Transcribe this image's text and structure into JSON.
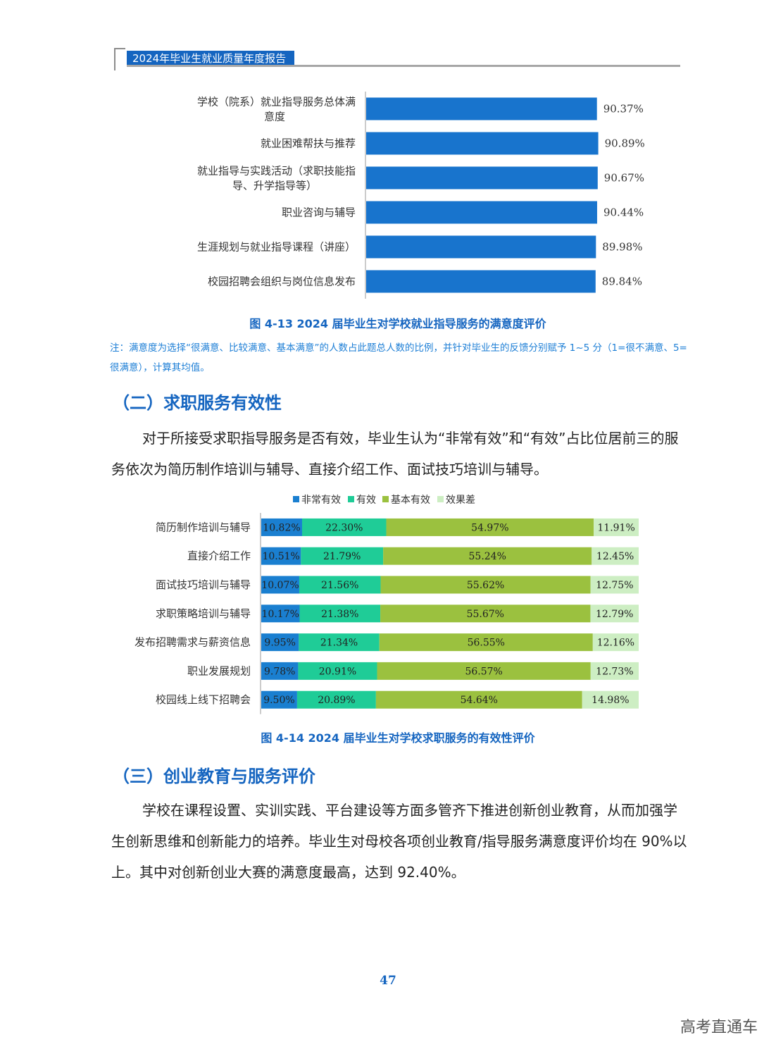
{
  "header": {
    "title": "2024年毕业生就业质量年度报告"
  },
  "colors": {
    "accent": "#1565c0",
    "bar": "#1874cd",
    "s1": "#1a7fd0",
    "s2": "#1fcc97",
    "s3": "#9bc13f",
    "s4": "#cdeec3"
  },
  "figure_13": {
    "caption": "图 4-13  2024 届毕业生对学校就业指导服务的满意度评价",
    "note": "注：满意度为选择“很满意、比较满意、基本满意”的人数占此题总人数的比例，并针对毕业生的反馈分别赋予 1~5 分（1=很不满意、5=很满意），计算其均值。"
  },
  "section_2": {
    "title": "（二）求职服务有效性",
    "paragraph": "对于所接受求职指导服务是否有效，毕业生认为“非常有效”和“有效”占比位居前三的服务依次为简历制作培训与辅导、直接介绍工作、面试技巧培训与辅导。"
  },
  "figure_14": {
    "caption": "图 4-14  2024 届毕业生对学校求职服务的有效性评价"
  },
  "section_3": {
    "title": "（三）创业教育与服务评价",
    "paragraph": "学校在课程设置、实训实践、平台建设等方面多管齐下推进创新创业教育，从而加强学生创新思维和创新能力的培养。毕业生对母校各项创业教育/指导服务满意度评价均在 90%以上。其中对创新创业大赛的满意度最高，达到 92.40%。"
  },
  "page_number": "47",
  "watermark": "高考直通车",
  "chart_data": [
    {
      "type": "bar",
      "orientation": "horizontal",
      "categories": [
        "学校（院系）就业指导服务总体满意度",
        "就业困难帮扶与推荐",
        "就业指导与实践活动（求职技能指导、升学指导等）",
        "职业咨询与辅导",
        "生涯规划与就业指导课程（讲座）",
        "校园招聘会组织与岗位信息发布"
      ],
      "values": [
        90.37,
        90.89,
        90.67,
        90.44,
        89.98,
        89.84
      ],
      "value_labels": [
        "90.37%",
        "90.89%",
        "90.67%",
        "90.44%",
        "89.98%",
        "89.84%"
      ]
    },
    {
      "type": "bar",
      "orientation": "horizontal",
      "stacked": true,
      "legend_position": "top",
      "categories": [
        "简历制作培训与辅导",
        "直接介绍工作",
        "面试技巧培训与辅导",
        "求职策略培训与辅导",
        "发布招聘需求与薪资信息",
        "职业发展规划",
        "校园线上线下招聘会"
      ],
      "series": [
        {
          "name": "非常有效",
          "values": [
            10.82,
            10.51,
            10.07,
            10.17,
            9.95,
            9.78,
            9.5
          ]
        },
        {
          "name": "有效",
          "values": [
            22.3,
            21.79,
            21.56,
            21.38,
            21.34,
            20.91,
            20.89
          ]
        },
        {
          "name": "基本有效",
          "values": [
            54.97,
            55.24,
            55.62,
            55.67,
            56.55,
            56.57,
            54.64
          ]
        },
        {
          "name": "效果差",
          "values": [
            11.91,
            12.45,
            12.75,
            12.79,
            12.16,
            12.73,
            14.98
          ]
        }
      ]
    }
  ]
}
